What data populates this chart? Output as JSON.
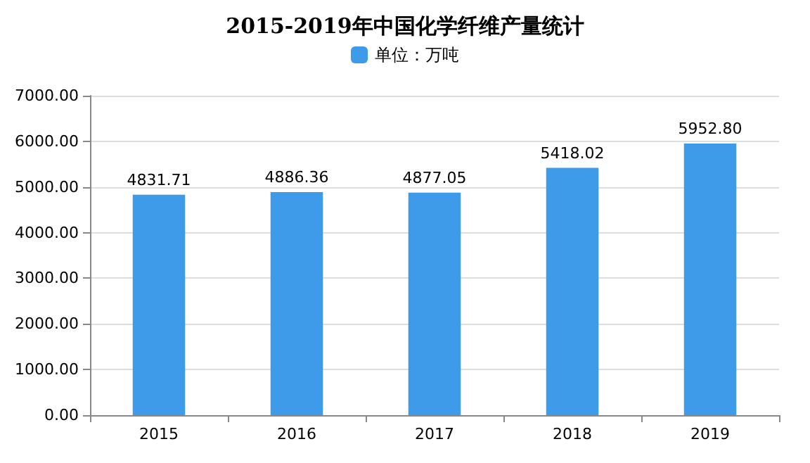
{
  "chart_data": {
    "type": "bar",
    "title": "2015-2019年中国化学纤维产量统计",
    "categories": [
      "2015",
      "2016",
      "2017",
      "2018",
      "2019"
    ],
    "series": [
      {
        "name": "单位：万吨",
        "color": "#3d9be9",
        "values": [
          4831.71,
          4886.36,
          4877.05,
          5418.02,
          5952.8
        ],
        "value_labels": [
          "4831.71",
          "4886.36",
          "4877.05",
          "5418.02",
          "5952.80"
        ]
      }
    ],
    "ylim": [
      0,
      7000
    ],
    "yticks": [
      {
        "value": 0,
        "label": "0.00"
      },
      {
        "value": 1000,
        "label": "1000.00"
      },
      {
        "value": 2000,
        "label": "2000.00"
      },
      {
        "value": 3000,
        "label": "3000.00"
      },
      {
        "value": 4000,
        "label": "4000.00"
      },
      {
        "value": 5000,
        "label": "5000.00"
      },
      {
        "value": 6000,
        "label": "6000.00"
      },
      {
        "value": 7000,
        "label": "7000.00"
      }
    ],
    "grid": "y",
    "legend": "top"
  }
}
